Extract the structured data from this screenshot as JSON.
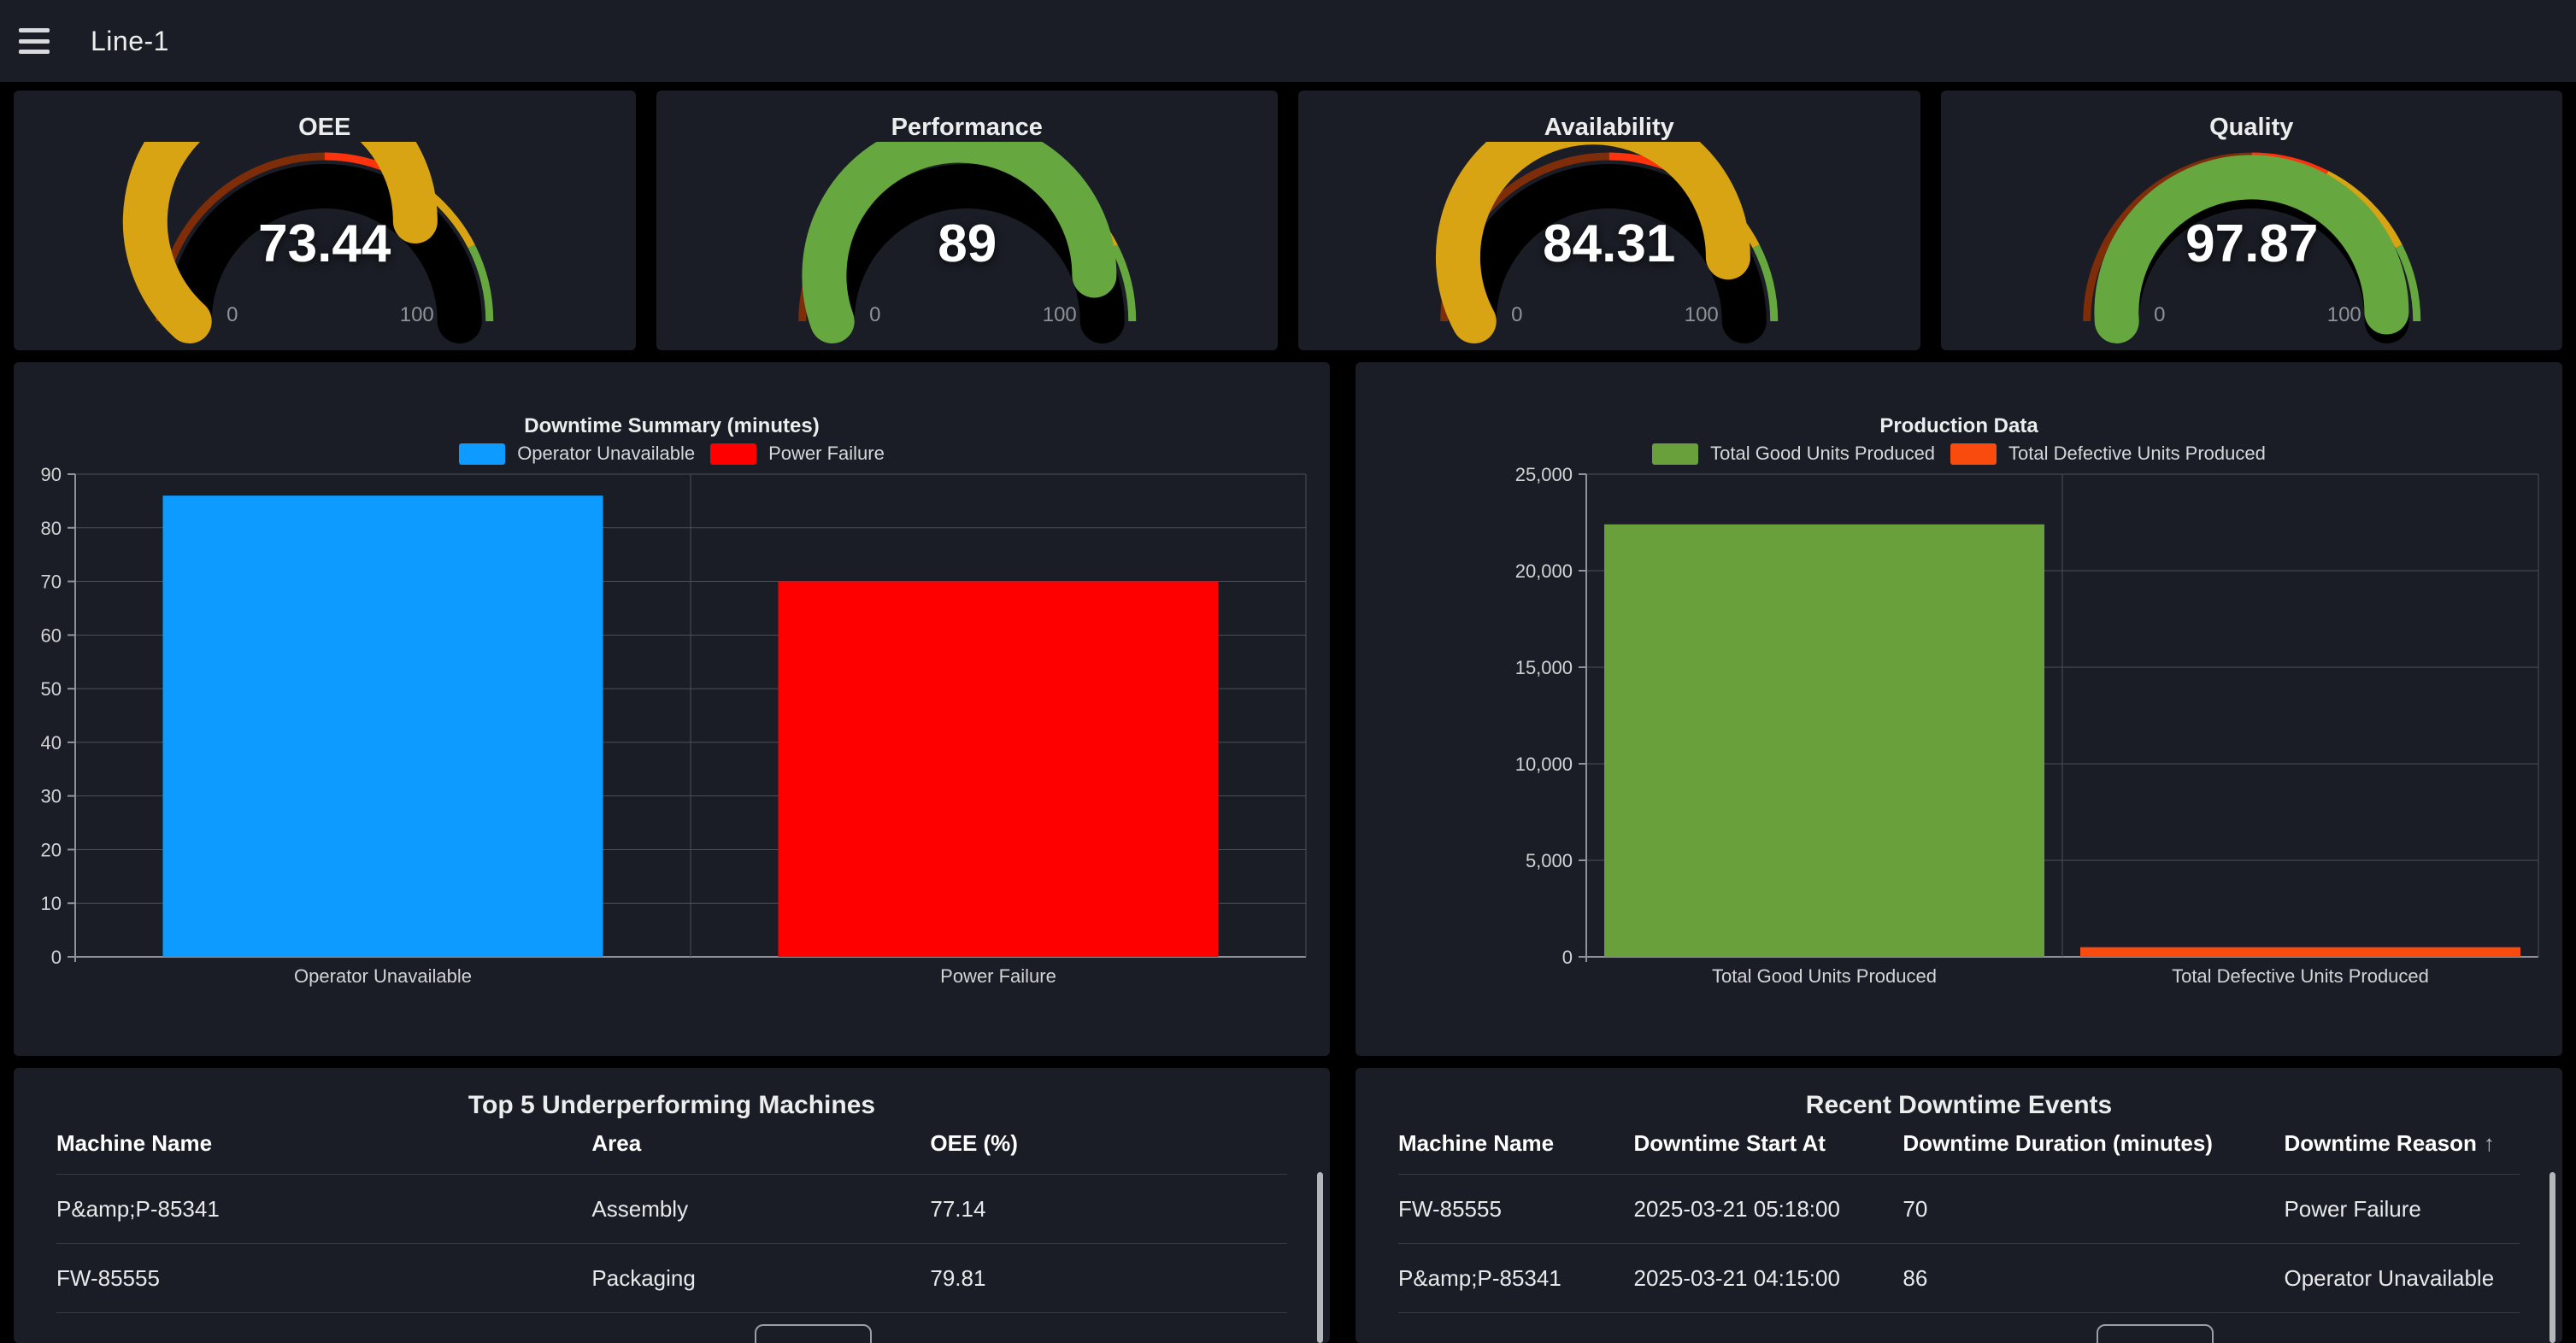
{
  "topbar": {
    "title": "Line-1",
    "menu_icon": "hamburger-icon"
  },
  "gauges": {
    "min": 0,
    "max": 100,
    "min_label": "0",
    "max_label": "100",
    "thresholds": [
      {
        "from": 0,
        "color": "#7e2d08",
        "name": "dark-red"
      },
      {
        "from": 50,
        "color": "#fd330d",
        "name": "red"
      },
      {
        "from": 65,
        "color": "#d9a414",
        "name": "yellow"
      },
      {
        "from": 85,
        "color": "#66a83f",
        "name": "green"
      }
    ],
    "items": [
      {
        "title": "OEE",
        "value": 73.44,
        "display": "73.44"
      },
      {
        "title": "Performance",
        "value": 89,
        "display": "89"
      },
      {
        "title": "Availability",
        "value": 84.31,
        "display": "84.31"
      },
      {
        "title": "Quality",
        "value": 97.87,
        "display": "97.87"
      }
    ]
  },
  "chart_data": [
    {
      "type": "bar",
      "title": "Downtime Summary (minutes)",
      "categories": [
        "Operator Unavailable",
        "Power Failure"
      ],
      "values": [
        86,
        70
      ],
      "colors": [
        "#0d9bff",
        "#ff0000"
      ],
      "ylim": [
        0,
        90
      ],
      "ytick_step": 10,
      "xlabel": "",
      "ylabel": "",
      "legend": [
        "Operator Unavailable",
        "Power Failure"
      ],
      "legend_position": "top",
      "grid": true
    },
    {
      "type": "bar",
      "title": "Production Data",
      "categories": [
        "Total Good Units Produced",
        "Total Defective Units Produced"
      ],
      "values": [
        22400,
        500
      ],
      "colors": [
        "#6aa03c",
        "#f94b0d"
      ],
      "ylim": [
        0,
        25000
      ],
      "ytick_step": 5000,
      "xlabel": "",
      "ylabel": "",
      "legend": [
        "Total Good Units Produced",
        "Total Defective Units Produced"
      ],
      "legend_position": "top",
      "grid": true
    }
  ],
  "tables": [
    {
      "title": "Top 5 Underperforming Machines",
      "columns": [
        "Machine Name",
        "Area",
        "OEE (%)"
      ],
      "rows": [
        [
          "P&amp;P-85341",
          "Assembly",
          "77.14"
        ],
        [
          "FW-85555",
          "Packaging",
          "79.81"
        ]
      ]
    },
    {
      "title": "Recent Downtime Events",
      "columns": [
        "Machine Name",
        "Downtime Start At",
        "Downtime Duration (minutes)",
        "Downtime Reason"
      ],
      "sort_column": "Downtime Reason",
      "sort_direction": "asc",
      "sort_icon": "↑",
      "rows": [
        [
          "FW-85555",
          "2025-03-21 05:18:00",
          "70",
          "Power Failure"
        ],
        [
          "P&amp;P-85341",
          "2025-03-21 04:15:00",
          "86",
          "Operator Unavailable"
        ]
      ]
    }
  ]
}
